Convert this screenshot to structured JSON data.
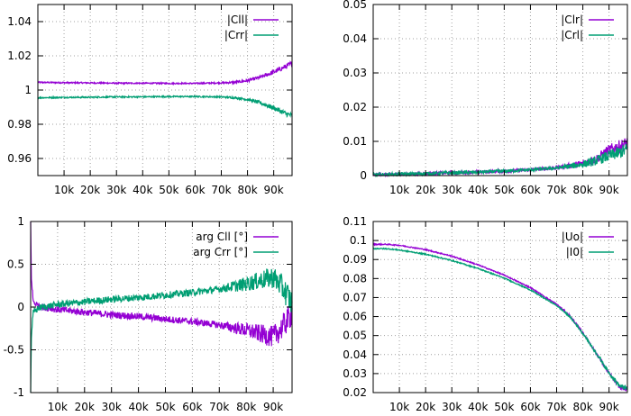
{
  "colors": {
    "purple": "#9400d3",
    "green": "#009e73",
    "grid": "#a0a0a0",
    "frame": "#000000"
  },
  "chart_data": [
    {
      "type": "line",
      "title": "",
      "xlabel": "",
      "ylabel": "",
      "xlim": [
        0,
        97000
      ],
      "ylim": [
        0.95,
        1.05
      ],
      "xticks": [
        "10k",
        "20k",
        "30k",
        "40k",
        "50k",
        "60k",
        "70k",
        "80k",
        "90k"
      ],
      "yticks": [
        "0.96",
        "0.98",
        "1",
        "1.02",
        "1.04"
      ],
      "ytick_values": [
        0.96,
        0.98,
        1.0,
        1.02,
        1.04
      ],
      "grid": true,
      "legend_position": "top-right",
      "x": [
        0,
        10000,
        20000,
        30000,
        40000,
        50000,
        60000,
        70000,
        75000,
        80000,
        85000,
        90000,
        95000,
        97000
      ],
      "series": [
        {
          "name": "|Cll|",
          "color": "#9400d3",
          "noise": 0.0004,
          "values": [
            1.0045,
            1.0043,
            1.0042,
            1.004,
            1.004,
            1.0039,
            1.0039,
            1.0042,
            1.0045,
            1.0055,
            1.0075,
            1.0105,
            1.014,
            1.0155
          ]
        },
        {
          "name": "|Crr|",
          "color": "#009e73",
          "noise": 0.0004,
          "values": [
            0.9955,
            0.9957,
            0.9958,
            0.996,
            0.996,
            0.9962,
            0.9962,
            0.996,
            0.9955,
            0.9945,
            0.9925,
            0.9895,
            0.986,
            0.985
          ]
        }
      ]
    },
    {
      "type": "line",
      "title": "",
      "xlabel": "",
      "ylabel": "",
      "xlim": [
        0,
        97000
      ],
      "ylim": [
        0,
        0.05
      ],
      "xticks": [
        "10k",
        "20k",
        "30k",
        "40k",
        "50k",
        "60k",
        "70k",
        "80k",
        "90k"
      ],
      "yticks": [
        "0",
        "0.01",
        "0.02",
        "0.03",
        "0.04",
        "0.05"
      ],
      "ytick_values": [
        0,
        0.01,
        0.02,
        0.03,
        0.04,
        0.05
      ],
      "grid": true,
      "legend_position": "top-right",
      "x": [
        0,
        10000,
        20000,
        30000,
        40000,
        50000,
        60000,
        70000,
        80000,
        85000,
        90000,
        95000,
        97000
      ],
      "series": [
        {
          "name": "|Clr|",
          "color": "#9400d3",
          "noise": 0.0005,
          "values": [
            0.0002,
            0.0004,
            0.0006,
            0.0008,
            0.001,
            0.0013,
            0.0017,
            0.0023,
            0.0035,
            0.0048,
            0.0075,
            0.0088,
            0.0095
          ]
        },
        {
          "name": "|Crl|",
          "color": "#009e73",
          "noise": 0.0005,
          "values": [
            0.0002,
            0.0004,
            0.0006,
            0.0008,
            0.001,
            0.0013,
            0.0017,
            0.0022,
            0.0033,
            0.0043,
            0.0058,
            0.007,
            0.0078
          ]
        }
      ]
    },
    {
      "type": "line",
      "title": "",
      "xlabel": "",
      "ylabel": "",
      "xlim": [
        0,
        97000
      ],
      "ylim": [
        -1,
        1
      ],
      "xticks": [
        "10k",
        "20k",
        "30k",
        "40k",
        "50k",
        "60k",
        "70k",
        "80k",
        "90k"
      ],
      "yticks": [
        "-1",
        "-0.5",
        "0",
        "0.5",
        "1"
      ],
      "ytick_values": [
        -1,
        -0.5,
        0,
        0.5,
        1
      ],
      "grid": true,
      "legend_position": "top-right",
      "x": [
        0,
        300,
        1000,
        3000,
        10000,
        20000,
        30000,
        40000,
        50000,
        60000,
        70000,
        80000,
        85000,
        90000,
        93000,
        96000,
        97000
      ],
      "series": [
        {
          "name": "arg Cll [°]",
          "color": "#9400d3",
          "noise": 0.04,
          "values": [
            1.0,
            0.3,
            0.06,
            0.01,
            -0.03,
            -0.06,
            -0.09,
            -0.11,
            -0.14,
            -0.17,
            -0.21,
            -0.27,
            -0.31,
            -0.35,
            -0.25,
            -0.12,
            -0.06
          ]
        },
        {
          "name": "arg Crr [°]",
          "color": "#009e73",
          "noise": 0.04,
          "values": [
            -1.0,
            -0.3,
            -0.06,
            -0.01,
            0.03,
            0.06,
            0.09,
            0.11,
            0.14,
            0.17,
            0.21,
            0.27,
            0.31,
            0.35,
            0.25,
            0.1,
            0.04
          ]
        }
      ]
    },
    {
      "type": "line",
      "title": "",
      "xlabel": "",
      "ylabel": "",
      "xlim": [
        0,
        97000
      ],
      "ylim": [
        0.02,
        0.11
      ],
      "xticks": [
        "10k",
        "20k",
        "30k",
        "40k",
        "50k",
        "60k",
        "70k",
        "80k",
        "90k"
      ],
      "yticks": [
        "0.02",
        "0.03",
        "0.04",
        "0.05",
        "0.06",
        "0.07",
        "0.08",
        "0.09",
        "0.1",
        "0.11"
      ],
      "ytick_values": [
        0.02,
        0.03,
        0.04,
        0.05,
        0.06,
        0.07,
        0.08,
        0.09,
        0.1,
        0.11
      ],
      "grid": true,
      "legend_position": "top-right",
      "x": [
        0,
        5000,
        10000,
        20000,
        30000,
        40000,
        50000,
        60000,
        70000,
        75000,
        80000,
        85000,
        90000,
        94000,
        97000
      ],
      "series": [
        {
          "name": "|Uo|",
          "color": "#9400d3",
          "noise": 0.0003,
          "values": [
            0.098,
            0.098,
            0.0975,
            0.0952,
            0.0918,
            0.0872,
            0.0818,
            0.0752,
            0.0665,
            0.0605,
            0.0515,
            0.041,
            0.03,
            0.023,
            0.0215
          ]
        },
        {
          "name": "|I0|",
          "color": "#009e73",
          "noise": 0.0003,
          "values": [
            0.0958,
            0.0957,
            0.095,
            0.0928,
            0.0895,
            0.0853,
            0.0802,
            0.074,
            0.0658,
            0.06,
            0.0512,
            0.041,
            0.0305,
            0.0235,
            0.022
          ]
        }
      ]
    }
  ]
}
